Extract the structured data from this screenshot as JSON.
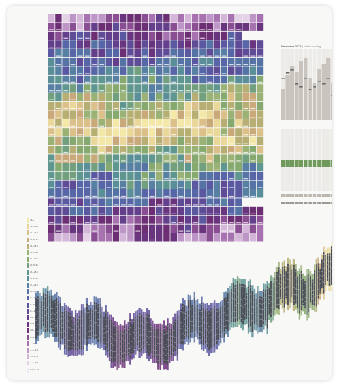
{
  "side_panel": {
    "title": "December 2023",
    "subtitle": "Hotel booking"
  },
  "legend": {
    "labels": [
      "46+",
      "43.5–46",
      "41–43.5",
      "38.5–41",
      "36–38.5",
      "33.5–36",
      "31–33.5",
      "28.5–31",
      "26–28.5",
      "23.5–26",
      "21–23.5",
      "18.5–21",
      "16–18.5",
      "13.5–16",
      "11–13.5",
      "8.5–11",
      "6–8.5",
      "3.5–6",
      "1–3.5",
      "−1.5–1",
      "−4–−1.5",
      "−6.5–−4",
      "−9–−6.5",
      "below −9"
    ]
  },
  "colors": {
    "scale": [
      "#f4e8a8",
      "#e9d89a",
      "#dcc08a",
      "#c9a97a",
      "#b6ae72",
      "#9bb276",
      "#86a96f",
      "#72a07f",
      "#5f9790",
      "#5a8e98",
      "#5780a2",
      "#5673a6",
      "#5766a6",
      "#5a58a0",
      "#5f4c97",
      "#64408c",
      "#69357f",
      "#6d2f74",
      "#8a4f92",
      "#a672b0",
      "#bd95c6",
      "#d3b6d8",
      "#e4d3e7",
      "#f1e9f2"
    ],
    "side_bar": "#c9c4be",
    "side_mark": "#6b6b6b",
    "side_green": "#6f9a5c"
  },
  "chart_data": [
    {
      "type": "heatmap",
      "rows": 26,
      "columns": 30,
      "color_scale_reversed": true
    },
    {
      "type": "bar",
      "series": [
        {
          "values": [
            22,
            32,
            38,
            34,
            42,
            44,
            30,
            26,
            36,
            40,
            44,
            26
          ]
        }
      ],
      "markers": [
        {
          "values": [
            30,
            34,
            36,
            26,
            24,
            30,
            22,
            24,
            28,
            26,
            30,
            18
          ]
        }
      ],
      "green_band": {
        "values": [
          1,
          1,
          1,
          1,
          1,
          1,
          1,
          1,
          1,
          1,
          1,
          1
        ]
      }
    },
    {
      "type": "bar",
      "subtype": "stacked-range",
      "x_count": 160,
      "series": [
        {
          "name": "daily range"
        }
      ]
    }
  ]
}
